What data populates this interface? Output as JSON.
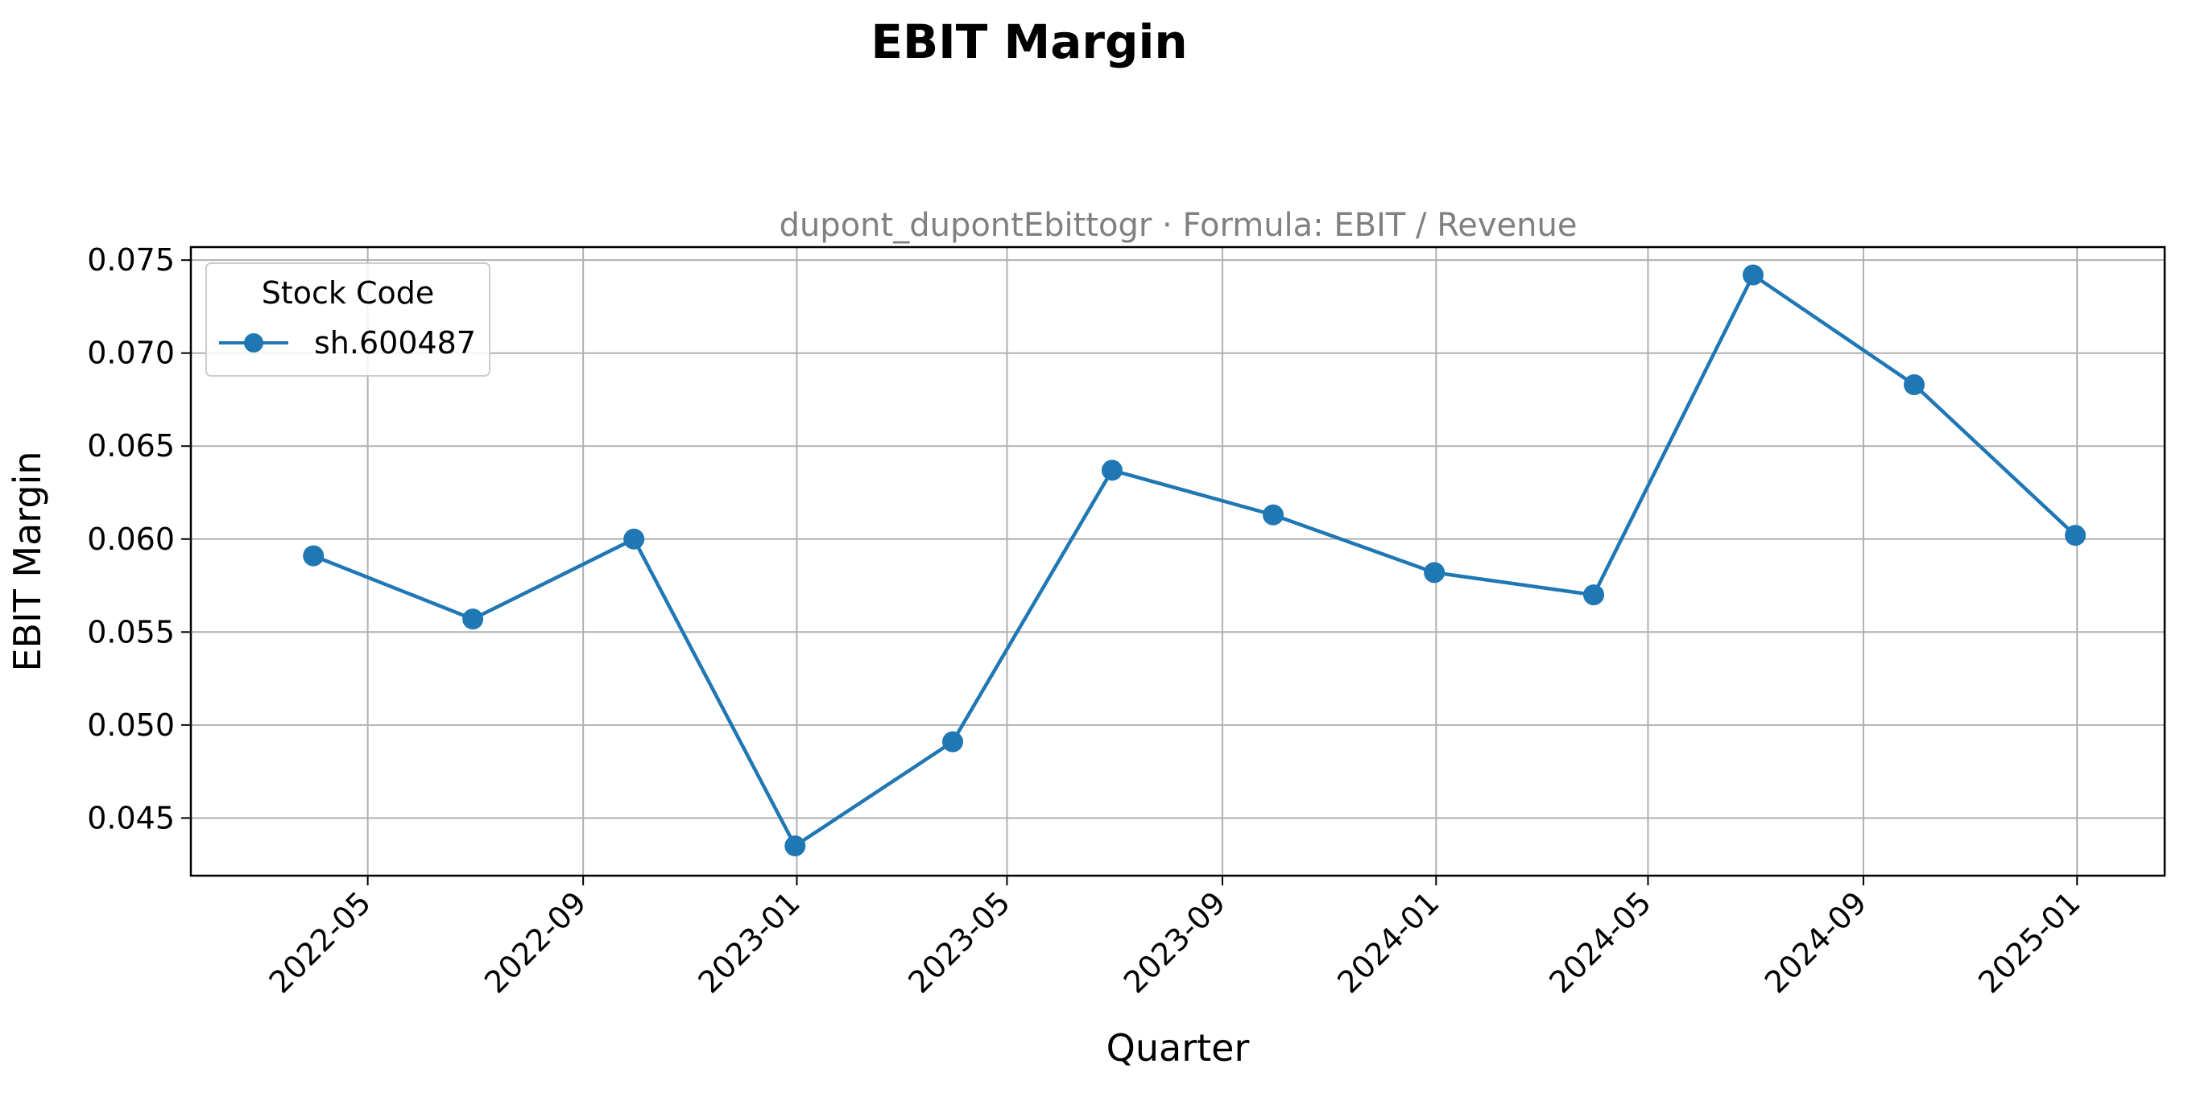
{
  "chart_data": {
    "type": "line",
    "title": "EBIT Margin",
    "subtitle": "dupont_dupontEbittogr · Formula: EBIT / Revenue",
    "xlabel": "Quarter",
    "ylabel": "EBIT Margin",
    "x_ticks": [
      "2022-05",
      "2022-09",
      "2023-01",
      "2023-05",
      "2023-09",
      "2024-01",
      "2024-05",
      "2024-09",
      "2025-01"
    ],
    "y_ticks": [
      "0.045",
      "0.050",
      "0.055",
      "0.060",
      "0.065",
      "0.070",
      "0.075"
    ],
    "ylim": [
      0.0419,
      0.0757
    ],
    "xlim": [
      "2022-01-20",
      "2025-02-20"
    ],
    "grid": true,
    "legend": {
      "title": "Stock Code",
      "placement": "top-left"
    },
    "series": [
      {
        "name": "sh.600487",
        "color": "#1f77b4",
        "marker": "circle",
        "points": [
          {
            "x": "2022-03-31",
            "y": 0.0591
          },
          {
            "x": "2022-06-30",
            "y": 0.0557
          },
          {
            "x": "2022-09-30",
            "y": 0.06
          },
          {
            "x": "2022-12-31",
            "y": 0.0435
          },
          {
            "x": "2023-03-31",
            "y": 0.0491
          },
          {
            "x": "2023-06-30",
            "y": 0.0637
          },
          {
            "x": "2023-09-30",
            "y": 0.0613
          },
          {
            "x": "2023-12-31",
            "y": 0.0582
          },
          {
            "x": "2024-03-31",
            "y": 0.057
          },
          {
            "x": "2024-06-30",
            "y": 0.0742
          },
          {
            "x": "2024-09-30",
            "y": 0.0683
          },
          {
            "x": "2024-12-31",
            "y": 0.0602
          }
        ]
      }
    ]
  }
}
